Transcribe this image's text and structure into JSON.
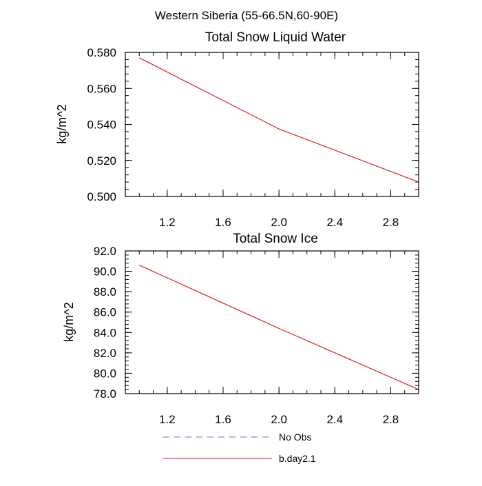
{
  "figure": {
    "title": "Western Siberia (55-66.5N,60-90E)"
  },
  "chart_data": [
    {
      "type": "line",
      "title": "Total Snow Liquid Water",
      "xlabel": "",
      "ylabel": "kg/m^2",
      "xlim": [
        0.9,
        3.0
      ],
      "ylim": [
        0.5,
        0.58
      ],
      "xticks": [
        1.2,
        1.6,
        2.0,
        2.4,
        2.8
      ],
      "xtick_labels": [
        "1.2",
        "1.6",
        "2.0",
        "2.4",
        "2.8"
      ],
      "yticks": [
        0.5,
        0.52,
        0.54,
        0.56,
        0.58
      ],
      "ytick_labels": [
        "0.500",
        "0.520",
        "0.540",
        "0.560",
        "0.580"
      ],
      "series": [
        {
          "name": "b.day2.1",
          "color": "#e31a1c",
          "x": [
            1,
            2,
            3
          ],
          "y": [
            0.577,
            0.5375,
            0.508
          ]
        }
      ]
    },
    {
      "type": "line",
      "title": "Total Snow Ice",
      "xlabel": "",
      "ylabel": "kg/m^2",
      "xlim": [
        0.9,
        3.0
      ],
      "ylim": [
        78.0,
        92.0
      ],
      "xticks": [
        1.2,
        1.6,
        2.0,
        2.4,
        2.8
      ],
      "xtick_labels": [
        "1.2",
        "1.6",
        "2.0",
        "2.4",
        "2.8"
      ],
      "yticks": [
        78,
        80,
        82,
        84,
        86,
        88,
        90,
        92
      ],
      "ytick_labels": [
        "78.0",
        "80.0",
        "82.0",
        "84.0",
        "86.0",
        "88.0",
        "90.0",
        "92.0"
      ],
      "series": [
        {
          "name": "b.day2.1",
          "color": "#e31a1c",
          "x": [
            1,
            2,
            3
          ],
          "y": [
            90.6,
            84.4,
            78.4
          ]
        }
      ]
    }
  ],
  "legend": {
    "items": [
      {
        "label": "No Obs",
        "color": "#6b6bd6",
        "dash": true
      },
      {
        "label": "b.day2.1",
        "color": "#e31a1c",
        "dash": false
      }
    ]
  }
}
